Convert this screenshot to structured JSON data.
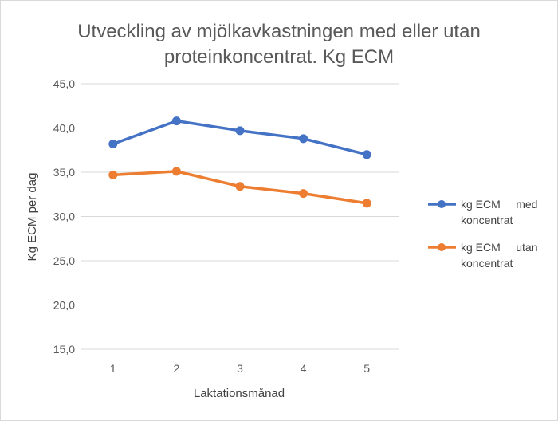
{
  "chart_data": {
    "type": "line",
    "title_lines": [
      "Utveckling av mjölkavkastningen med eller utan",
      "proteinkoncentrat. Kg ECM"
    ],
    "title": "Utveckling av mjölkavkastningen med eller utan proteinkoncentrat. Kg ECM",
    "xlabel": "Laktationsmånad",
    "ylabel": "Kg ECM per dag",
    "categories": [
      "1",
      "2",
      "3",
      "4",
      "5"
    ],
    "ylim": [
      15.0,
      45.0
    ],
    "yticks": [
      "15,0",
      "20,0",
      "25,0",
      "30,0",
      "35,0",
      "40,0",
      "45,0"
    ],
    "ytick_values": [
      15,
      20,
      25,
      30,
      35,
      40,
      45
    ],
    "grid": true,
    "legend_position": "right",
    "series": [
      {
        "name": "kg ECM med koncentrat",
        "legend_lines": [
          "kg ECM     med",
          "koncentrat"
        ],
        "color": "#4472C4",
        "values": [
          38.2,
          40.8,
          39.7,
          38.8,
          37.0
        ]
      },
      {
        "name": "kg ECM utan koncentrat",
        "legend_lines": [
          "kg ECM     utan",
          "koncentrat"
        ],
        "color": "#ED7D31",
        "values": [
          34.7,
          35.1,
          33.4,
          32.6,
          31.5
        ]
      }
    ]
  }
}
